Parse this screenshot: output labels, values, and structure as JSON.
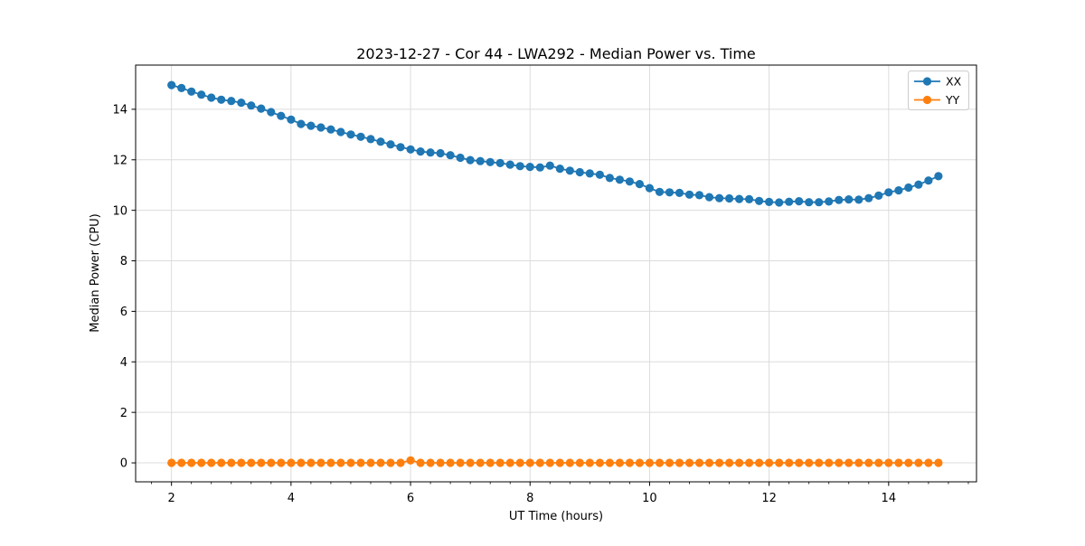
{
  "chart_data": {
    "type": "line",
    "title": "2023-12-27 - Cor 44 - LWA292 - Median Power vs. Time",
    "xlabel": "UT Time (hours)",
    "ylabel": "Median Power (CPU)",
    "xlim": [
      1.4,
      15.47
    ],
    "ylim": [
      -0.75,
      15.75
    ],
    "x_major_ticks": [
      2,
      4,
      6,
      8,
      10,
      12,
      14
    ],
    "x_minor_tick_step": 0.3333,
    "y_major_ticks": [
      0,
      2,
      4,
      6,
      8,
      10,
      12,
      14
    ],
    "grid": "major-both-axes",
    "grid_color": "#dcdcdc",
    "marker": "circle",
    "legend": {
      "position": "upper-right",
      "entries": [
        {
          "label": "XX",
          "color": "#1f77b4"
        },
        {
          "label": "YY",
          "color": "#ff7f0e"
        }
      ]
    },
    "x": [
      2.0,
      2.167,
      2.333,
      2.5,
      2.667,
      2.833,
      3.0,
      3.167,
      3.333,
      3.5,
      3.667,
      3.833,
      4.0,
      4.167,
      4.333,
      4.5,
      4.667,
      4.833,
      5.0,
      5.167,
      5.333,
      5.5,
      5.667,
      5.833,
      6.0,
      6.167,
      6.333,
      6.5,
      6.667,
      6.833,
      7.0,
      7.167,
      7.333,
      7.5,
      7.667,
      7.833,
      8.0,
      8.167,
      8.333,
      8.5,
      8.667,
      8.833,
      9.0,
      9.167,
      9.333,
      9.5,
      9.667,
      9.833,
      10.0,
      10.167,
      10.333,
      10.5,
      10.667,
      10.833,
      11.0,
      11.167,
      11.333,
      11.5,
      11.667,
      11.833,
      12.0,
      12.167,
      12.333,
      12.5,
      12.667,
      12.833,
      13.0,
      13.167,
      13.333,
      13.5,
      13.667,
      13.833,
      14.0,
      14.167,
      14.333,
      14.5,
      14.667,
      14.833
    ],
    "series": [
      {
        "name": "XX",
        "color": "#1f77b4",
        "values": [
          14.96,
          14.84,
          14.7,
          14.58,
          14.46,
          14.38,
          14.33,
          14.26,
          14.15,
          14.03,
          13.89,
          13.74,
          13.59,
          13.42,
          13.35,
          13.28,
          13.2,
          13.1,
          13.0,
          12.91,
          12.82,
          12.72,
          12.61,
          12.5,
          12.41,
          12.33,
          12.29,
          12.26,
          12.18,
          12.08,
          11.99,
          11.95,
          11.91,
          11.87,
          11.81,
          11.75,
          11.72,
          11.7,
          11.77,
          11.65,
          11.57,
          11.51,
          11.46,
          11.41,
          11.28,
          11.21,
          11.14,
          11.04,
          10.88,
          10.73,
          10.71,
          10.69,
          10.62,
          10.6,
          10.52,
          10.48,
          10.47,
          10.45,
          10.44,
          10.37,
          10.33,
          10.31,
          10.34,
          10.36,
          10.32,
          10.32,
          10.35,
          10.41,
          10.43,
          10.42,
          10.48,
          10.58,
          10.71,
          10.79,
          10.9,
          11.02,
          11.18,
          11.35
        ]
      },
      {
        "name": "YY",
        "color": "#ff7f0e",
        "values": [
          0,
          0,
          0,
          0,
          0,
          0,
          0,
          0,
          0,
          0,
          0,
          0,
          0,
          0,
          0,
          0,
          0,
          0,
          0,
          0,
          0,
          0,
          0,
          0,
          0.1,
          0,
          0,
          0,
          0,
          0,
          0,
          0,
          0,
          0,
          0,
          0,
          0,
          0,
          0,
          0,
          0,
          0,
          0,
          0,
          0,
          0,
          0,
          0,
          0,
          0,
          0,
          0,
          0,
          0,
          0,
          0,
          0,
          0,
          0,
          0,
          0,
          0,
          0,
          0,
          0,
          0,
          0,
          0,
          0,
          0,
          0,
          0,
          0,
          0,
          0,
          0,
          0,
          0
        ]
      }
    ]
  }
}
